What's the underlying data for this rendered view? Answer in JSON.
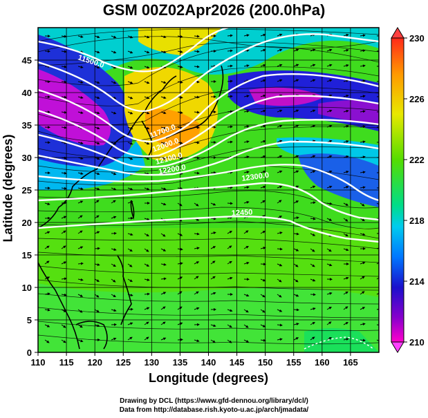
{
  "title": "GSM 00Z02Apr2026 (200.0hPa)",
  "xlabel": "Longitude (degrees)",
  "ylabel": "Latitude  (degrees)",
  "xticks": [
    "110",
    "115",
    "120",
    "125",
    "130",
    "135",
    "140",
    "145",
    "150",
    "155",
    "160",
    "165"
  ],
  "yticks": [
    "0",
    "5",
    "10",
    "15",
    "20",
    "25",
    "30",
    "35",
    "40",
    "45"
  ],
  "colorbar": {
    "labels": [
      "230",
      "226",
      "222",
      "218",
      "214",
      "210"
    ]
  },
  "contour_labels": [
    "11500.0",
    "11700.0",
    "12000.0",
    "12100.0",
    "12200.0",
    "12300.0",
    "12450"
  ],
  "credits": {
    "line1": "Drawing by DCL (https://www.gfd-dennou.org/library/dcl/)",
    "line2": "Data from http://database.rish.kyoto-u.ac.jp/arch/jmadata/"
  },
  "chart_data": {
    "type": "heatmap",
    "title": "GSM 00Z02Apr2026 (200.0hPa)",
    "xlabel": "Longitude (degrees)",
    "ylabel": "Latitude  (degrees)",
    "xlim": [
      110,
      170
    ],
    "ylim": [
      0,
      50
    ],
    "colorbar_range": [
      210,
      230
    ],
    "colorbar_ticks": [
      230,
      226,
      222,
      218,
      214,
      210
    ],
    "contour_labels": [
      "11500.0",
      "11700.0",
      "12000.0",
      "12100.0",
      "12200.0",
      "12300.0",
      "12450"
    ],
    "grid": true
  }
}
